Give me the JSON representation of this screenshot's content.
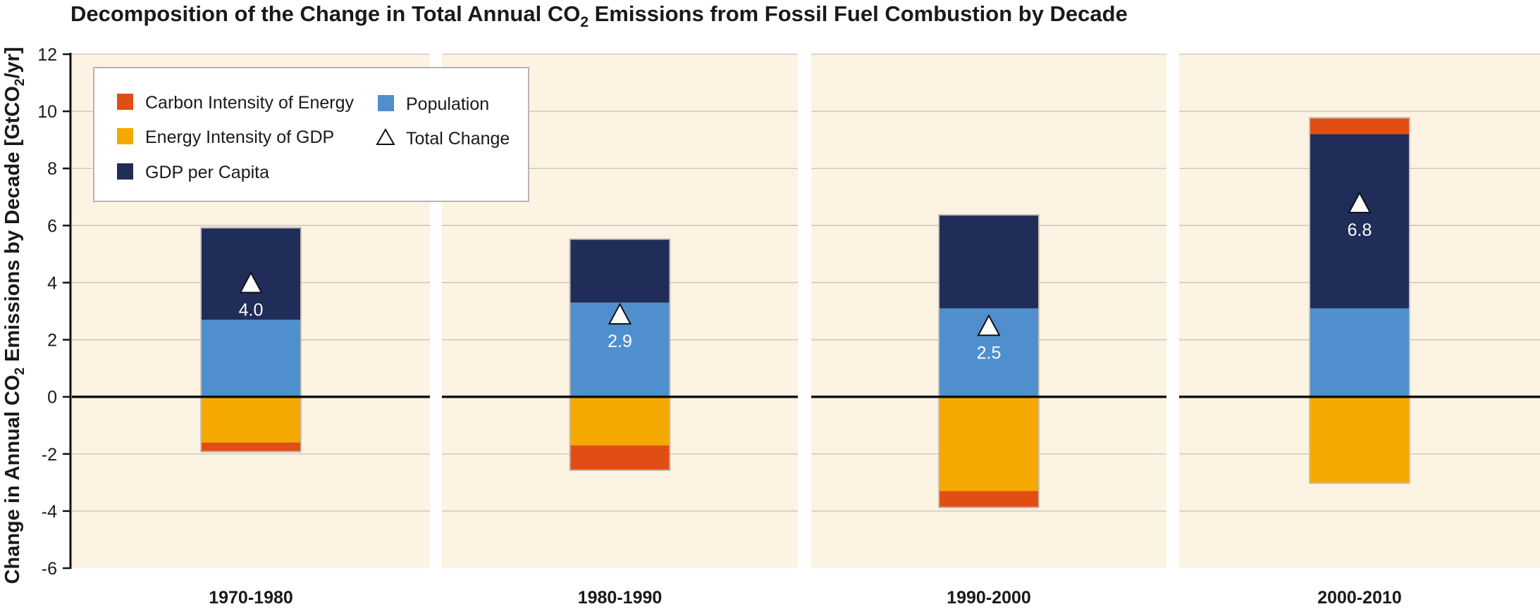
{
  "title": {
    "prefix": "Decomposition of the Change in Total Annual CO",
    "sub": "2",
    "suffix": " Emissions from Fossil Fuel Combustion by Decade"
  },
  "chart_data": {
    "type": "bar",
    "stacked": true,
    "categories": [
      "1970-1980",
      "1980-1990",
      "1990-2000",
      "2000-2010"
    ],
    "ylabel": {
      "prefix": "Change in Annual CO",
      "sub1": "2",
      "middle": " Emissions by Decade [GtCO",
      "sub2": "2",
      "suffix": "/yr]"
    },
    "ylim": [
      -6,
      12
    ],
    "yticks": [
      -6,
      -4,
      -2,
      0,
      2,
      4,
      6,
      8,
      10,
      12
    ],
    "grid": true,
    "legend_position": "top-left",
    "series": [
      {
        "name": "Carbon Intensity of Energy",
        "color": "#e04e14",
        "values": [
          -0.3,
          -0.85,
          -0.55,
          0.55
        ]
      },
      {
        "name": "Energy Intensity of GDP",
        "color": "#f5a800",
        "values": [
          -1.6,
          -1.7,
          -3.3,
          -3.0
        ]
      },
      {
        "name": "GDP per Capita",
        "color": "#1f2d58",
        "values": [
          3.2,
          2.2,
          3.25,
          6.1
        ]
      },
      {
        "name": "Population",
        "color": "#4f8fcd",
        "values": [
          2.7,
          3.3,
          3.1,
          3.1
        ]
      }
    ],
    "total_change": {
      "name": "Total Change",
      "values": [
        4.0,
        2.9,
        2.5,
        6.8
      ],
      "labels": [
        "4.0",
        "2.9",
        "2.5",
        "6.8"
      ]
    }
  }
}
